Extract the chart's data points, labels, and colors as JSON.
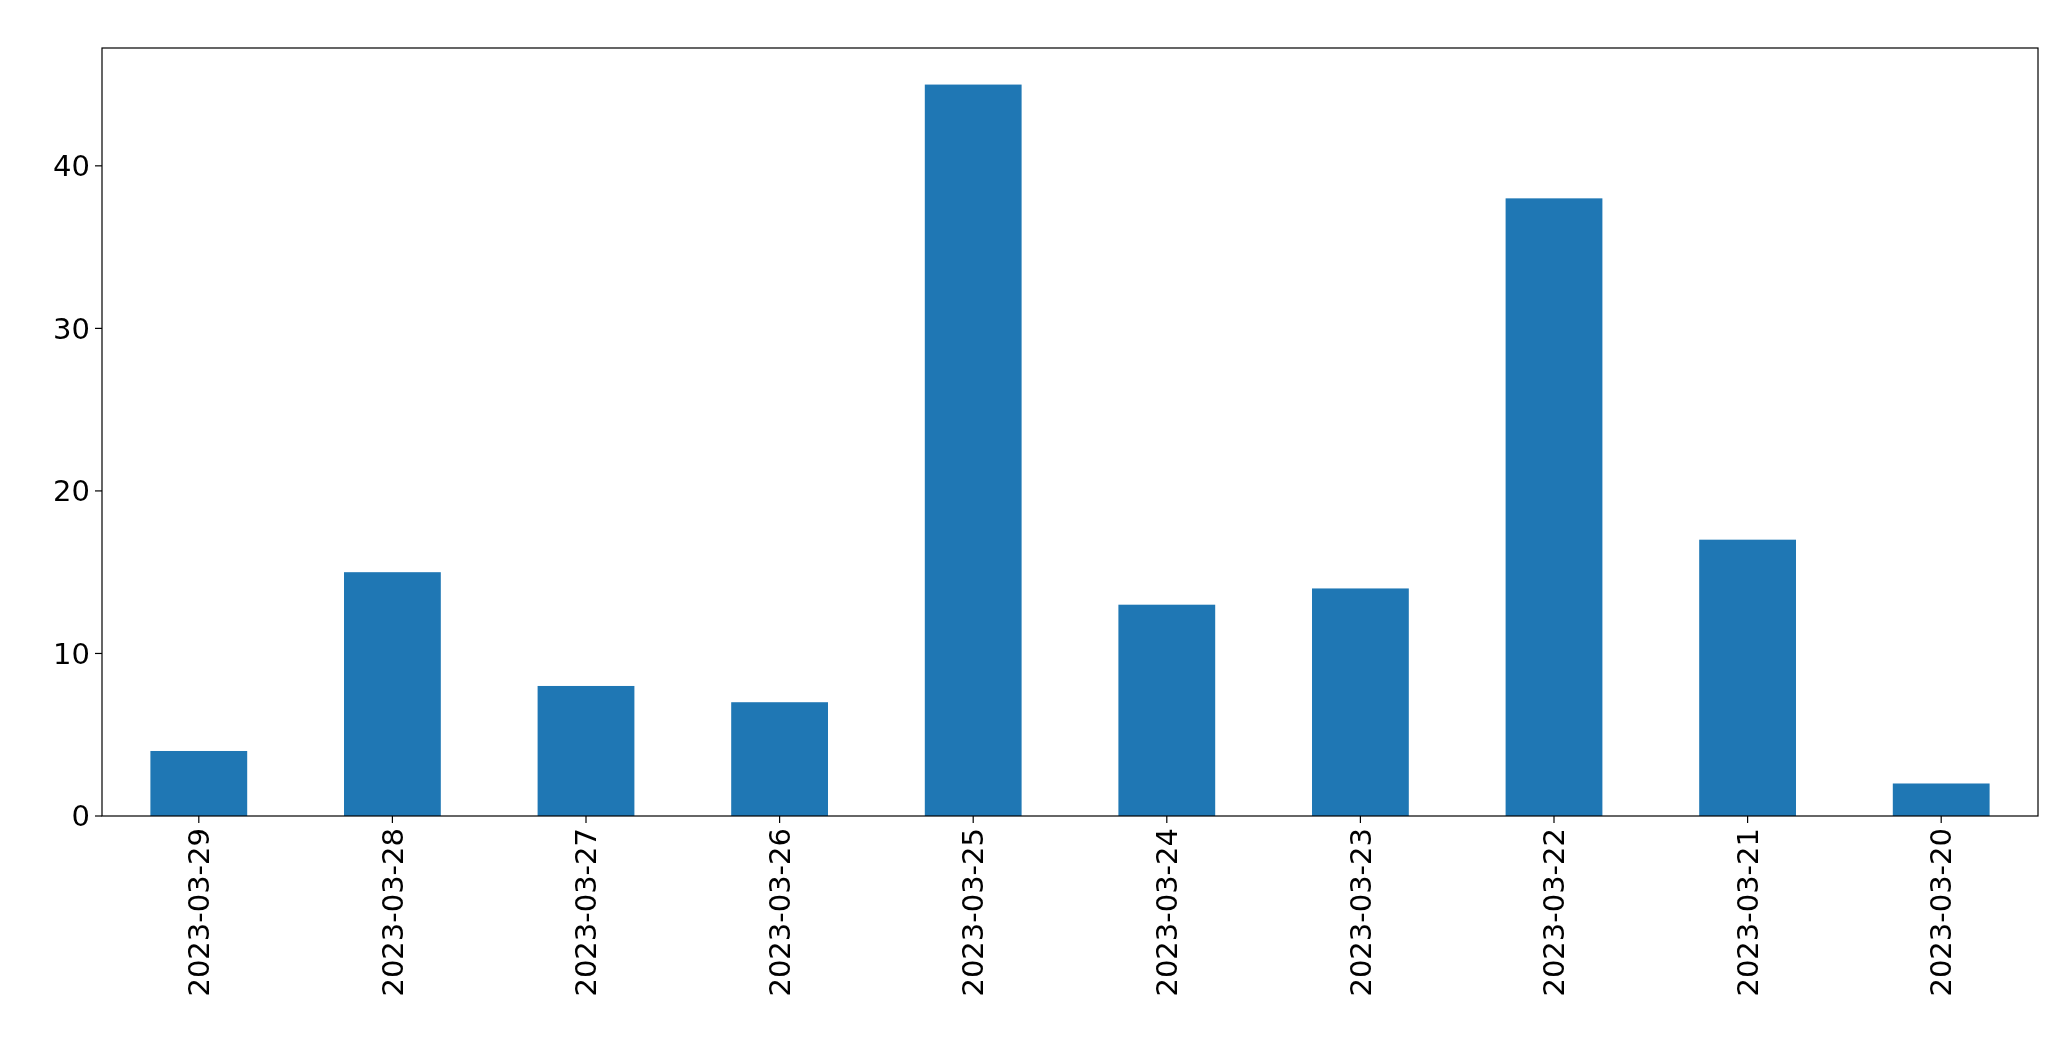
{
  "chart_data": {
    "type": "bar",
    "categories": [
      "2023-03-29",
      "2023-03-28",
      "2023-03-27",
      "2023-03-26",
      "2023-03-25",
      "2023-03-24",
      "2023-03-23",
      "2023-03-22",
      "2023-03-21",
      "2023-03-20"
    ],
    "values": [
      4,
      15,
      8,
      7,
      45,
      13,
      14,
      38,
      17,
      2
    ],
    "color": "#1f77b4",
    "ylim": [
      0,
      47.25
    ],
    "yticks": [
      0,
      10,
      20,
      30,
      40
    ]
  }
}
